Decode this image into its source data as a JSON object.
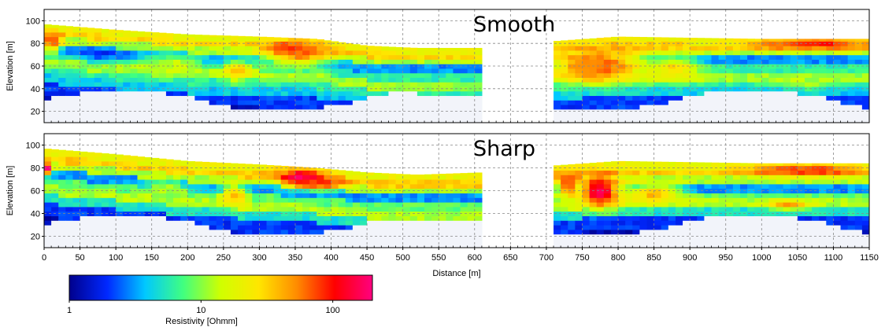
{
  "chart_data": [
    {
      "type": "heatmap",
      "title": "Smooth",
      "xlabel": "",
      "ylabel": "Elevation [m]",
      "xlim": [
        0,
        1150
      ],
      "ylim": [
        10,
        110
      ],
      "x_ticks": [],
      "y_ticks": [
        20,
        40,
        60,
        80,
        100
      ],
      "grid": true,
      "colormap": "jet-like",
      "value_unit": "Ohmm",
      "surface_top": [
        [
          0,
          97
        ],
        [
          100,
          92
        ],
        [
          200,
          88
        ],
        [
          300,
          86
        ],
        [
          380,
          84
        ],
        [
          450,
          78
        ],
        [
          520,
          76
        ],
        [
          610,
          76
        ],
        [
          710,
          82
        ],
        [
          800,
          86
        ],
        [
          900,
          85
        ],
        [
          1000,
          84
        ],
        [
          1100,
          84
        ],
        [
          1150,
          84
        ]
      ],
      "data_gap": [
        612,
        712
      ],
      "bands": [
        {
          "from": 100,
          "value": 20
        },
        {
          "from": 5,
          "value": 30
        },
        {
          "from": 10,
          "value": 12
        },
        {
          "from": 16,
          "value": 3
        },
        {
          "from": 24,
          "value": 6
        },
        {
          "from": 30,
          "value": 11
        },
        {
          "from": 38,
          "value": 6
        },
        {
          "from": 44,
          "value": 4
        },
        {
          "from": 52,
          "value": 2
        },
        {
          "from": 62,
          "value": 1.2
        }
      ],
      "anomalies": [
        {
          "x": 10,
          "y": 82,
          "rx": 18,
          "ry": 10,
          "value": 90
        },
        {
          "x": 80,
          "y": 70,
          "rx": 45,
          "ry": 5,
          "value": 1.8
        },
        {
          "x": 340,
          "y": 76,
          "rx": 20,
          "ry": 5,
          "value": 170
        },
        {
          "x": 355,
          "y": 72,
          "rx": 60,
          "ry": 13,
          "value": 70
        },
        {
          "x": 270,
          "y": 56,
          "rx": 22,
          "ry": 10,
          "value": 40
        },
        {
          "x": 180,
          "y": 62,
          "rx": 50,
          "ry": 12,
          "value": 14
        },
        {
          "x": 770,
          "y": 60,
          "rx": 40,
          "ry": 10,
          "value": 190
        },
        {
          "x": 770,
          "y": 62,
          "rx": 85,
          "ry": 19,
          "value": 60
        },
        {
          "x": 880,
          "y": 58,
          "rx": 40,
          "ry": 12,
          "value": 30
        },
        {
          "x": 1070,
          "y": 80,
          "rx": 100,
          "ry": 6,
          "value": 100
        },
        {
          "x": 1060,
          "y": 46,
          "rx": 45,
          "ry": 8,
          "value": 12
        }
      ]
    },
    {
      "type": "heatmap",
      "title": "Sharp",
      "xlabel": "Distance [m]",
      "ylabel": "Elevation [m]",
      "xlim": [
        0,
        1150
      ],
      "ylim": [
        10,
        110
      ],
      "x_ticks": [
        0,
        50,
        100,
        150,
        200,
        250,
        300,
        350,
        400,
        450,
        500,
        550,
        600,
        650,
        700,
        750,
        800,
        850,
        900,
        950,
        1000,
        1050,
        1100,
        1150
      ],
      "y_ticks": [
        20,
        40,
        60,
        80,
        100
      ],
      "grid": true,
      "colormap": "jet-like",
      "value_unit": "Ohmm",
      "surface_top": [
        [
          0,
          97
        ],
        [
          100,
          92
        ],
        [
          200,
          86
        ],
        [
          300,
          83
        ],
        [
          380,
          80
        ],
        [
          450,
          76
        ],
        [
          520,
          74
        ],
        [
          610,
          76
        ],
        [
          710,
          82
        ],
        [
          800,
          86
        ],
        [
          900,
          85
        ],
        [
          1000,
          84
        ],
        [
          1100,
          84
        ],
        [
          1150,
          84
        ]
      ],
      "data_gap": [
        612,
        712
      ],
      "bands": [
        {
          "from": 100,
          "value": 20
        },
        {
          "from": 6,
          "value": 32
        },
        {
          "from": 12,
          "value": 12
        },
        {
          "from": 18,
          "value": 3
        },
        {
          "from": 26,
          "value": 8
        },
        {
          "from": 32,
          "value": 12
        },
        {
          "from": 40,
          "value": 5
        },
        {
          "from": 48,
          "value": 2
        },
        {
          "from": 60,
          "value": 1.2
        }
      ],
      "anomalies": [
        {
          "x": 6,
          "y": 80,
          "rx": 8,
          "ry": 7,
          "value": 170
        },
        {
          "x": 360,
          "y": 72,
          "rx": 40,
          "ry": 9,
          "value": 180
        },
        {
          "x": 390,
          "y": 66,
          "rx": 40,
          "ry": 6,
          "value": 80
        },
        {
          "x": 265,
          "y": 56,
          "rx": 22,
          "ry": 12,
          "value": 40
        },
        {
          "x": 170,
          "y": 62,
          "rx": 40,
          "ry": 10,
          "value": 12
        },
        {
          "x": 775,
          "y": 60,
          "rx": 35,
          "ry": 17,
          "value": 190
        },
        {
          "x": 850,
          "y": 58,
          "rx": 45,
          "ry": 10,
          "value": 40
        },
        {
          "x": 730,
          "y": 65,
          "rx": 20,
          "ry": 12,
          "value": 80
        },
        {
          "x": 1060,
          "y": 78,
          "rx": 100,
          "ry": 6,
          "value": 90
        },
        {
          "x": 1040,
          "y": 48,
          "rx": 35,
          "ry": 5,
          "value": 45
        }
      ]
    }
  ],
  "colorbar": {
    "label": "Resistivity [Ohmm]",
    "range": [
      1,
      200
    ],
    "scale": "log",
    "ticks": [
      {
        "value": 1,
        "label": "1"
      },
      {
        "value": 10,
        "label": "10"
      },
      {
        "value": 100,
        "label": "100"
      }
    ],
    "stops": [
      "#00008c",
      "#0028ff",
      "#00c8ff",
      "#40ff80",
      "#d0ff00",
      "#ffe600",
      "#ff8c00",
      "#ff0000",
      "#ff0080"
    ]
  },
  "colors": {
    "background_region": "#f2f4fa",
    "grid": "#888888"
  }
}
